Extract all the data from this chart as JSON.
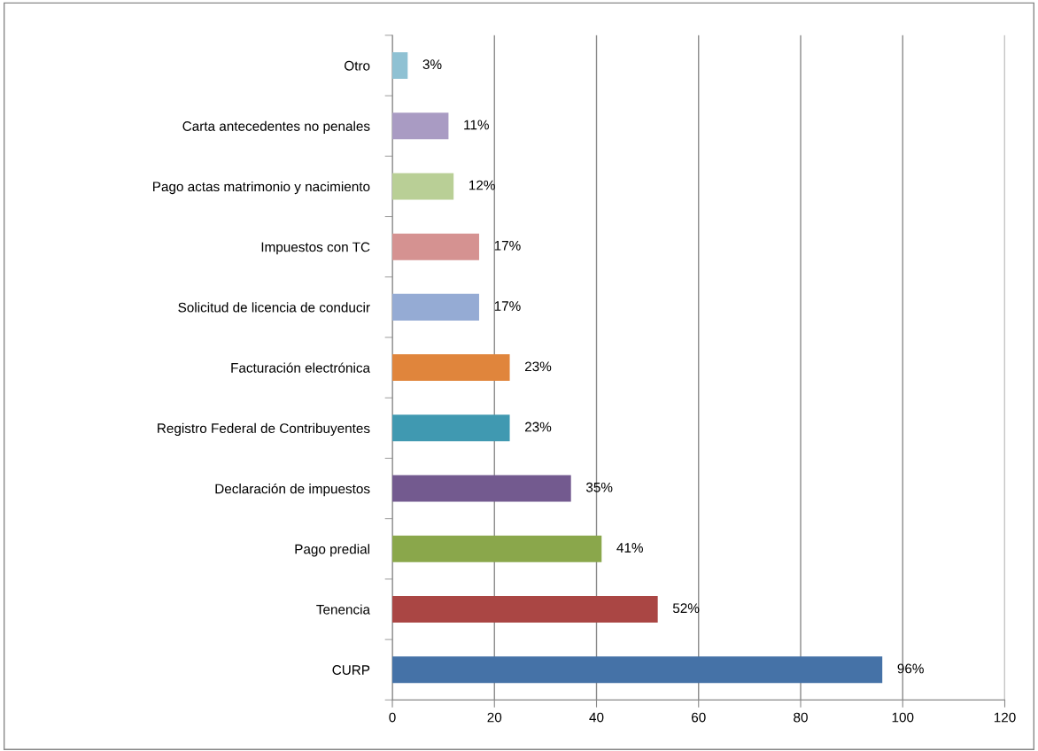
{
  "chart_data": {
    "type": "bar",
    "orientation": "horizontal",
    "categories": [
      "Otro",
      "Carta antecedentes no penales",
      "Pago actas matrimonio y nacimiento",
      "Impuestos con TC",
      "Solicitud de licencia de conducir",
      "Facturación electrónica",
      "Registro Federal de Contribuyentes",
      "Declaración de impuestos",
      "Pago predial",
      "Tenencia",
      "CURP"
    ],
    "values": [
      3,
      11,
      12,
      17,
      17,
      23,
      23,
      35,
      41,
      52,
      96
    ],
    "colors": [
      "#8fc1d3",
      "#a99bc3",
      "#b9cf96",
      "#d59291",
      "#95abd4",
      "#e0853c",
      "#4099b1",
      "#735a8f",
      "#8aa74b",
      "#aa4644",
      "#4572a7"
    ],
    "value_labels": [
      "3%",
      "11%",
      "12%",
      "17%",
      "17%",
      "23%",
      "23%",
      "35%",
      "41%",
      "52%",
      "96%"
    ],
    "xlim": [
      0,
      120
    ],
    "xticks": [
      0,
      20,
      40,
      60,
      80,
      100,
      120
    ],
    "grid": "x",
    "legend": false
  }
}
